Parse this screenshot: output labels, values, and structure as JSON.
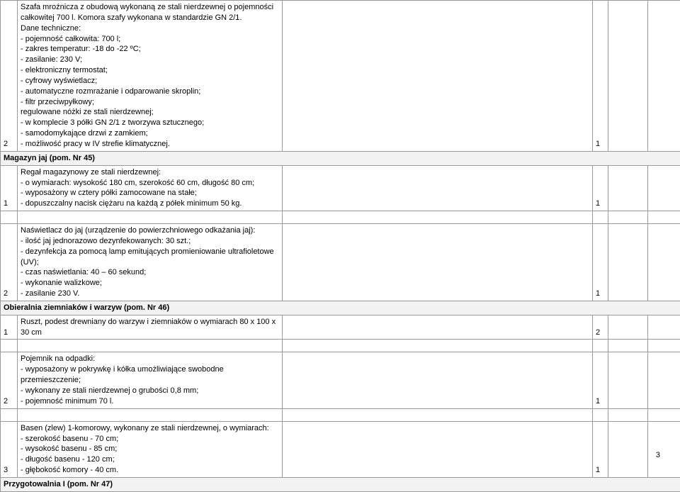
{
  "page_number": "3",
  "rows": [
    {
      "type": "data",
      "num": "2",
      "desc": "Szafa mroźnicza z obudową wykonaną ze stali nierdzewnej o pojemności całkowitej 700 l. Komora szafy wykonana w standardzie GN 2/1.\nDane techniczne:\n- pojemność całkowita: 700 l;\n- zakres temperatur: -18 do -22 ºC;\n- zasilanie: 230 V;\n- elektroniczny termostat;\n- cyfrowy wyświetlacz;\n- automatyczne rozmrażanie i odparowanie skroplin;\n- filtr przeciwpyłkowy;\nregulowane nóżki ze stali nierdzewnej;\n- w komplecie 3 półki GN 2/1 z tworzywa sztucznego;\n- samodomykające drzwi z zamkiem;\n- możliwość pracy w IV strefie klimatycznej.",
      "qty": "1"
    },
    {
      "type": "section",
      "title": "Magazyn jaj (pom. Nr 45)"
    },
    {
      "type": "data",
      "num": "1",
      "desc": "Regał magazynowy ze stali nierdzewnej:\n- o wymiarach: wysokość 180 cm, szerokość 60 cm, długość 80 cm;\n- wyposażony w cztery półki zamocowane na stałe;\n- dopuszczalny nacisk ciężaru na każdą z półek minimum 50 kg.",
      "qty": "1"
    },
    {
      "type": "spacer"
    },
    {
      "type": "data",
      "num": "2",
      "desc": "Naświetlacz do jaj (urządzenie do powierzchniowego odkażania jaj):\n- ilość jaj jednorazowo dezynfekowanych: 30 szt.;\n- dezynfekcja za pomocą lamp emitujących promieniowanie ultrafioletowe (UV);\n- czas naświetlania: 40 – 60 sekund;\n- wykonanie walizkowe;\n- zasilanie 230 V.",
      "qty": "1"
    },
    {
      "type": "section",
      "title": "Obieralnia ziemniaków i warzyw (pom. Nr 46)"
    },
    {
      "type": "data",
      "num": "1",
      "desc": "Ruszt, podest drewniany do warzyw i ziemniaków o wymiarach 80 x 100 x 30 cm",
      "qty": "2"
    },
    {
      "type": "spacer"
    },
    {
      "type": "data",
      "num": "2",
      "desc": "Pojemnik na odpadki:\n- wyposażony w pokrywkę i kółka umożliwiające swobodne przemieszczenie;\n- wykonany ze stali nierdzewnej o grubości 0,8 mm;\n- pojemność minimum 70 l.",
      "qty": "1"
    },
    {
      "type": "spacer"
    },
    {
      "type": "data",
      "num": "3",
      "desc": "Basen (zlew) 1-komorowy, wykonany ze stali nierdzewnej, o wymiarach:\n- szerokość basenu - 70 cm;\n- wysokość basenu - 85 cm;\n- długość basenu - 120 cm;\n- głębokość komory - 40 cm.",
      "qty": "1"
    },
    {
      "type": "section",
      "title": "Przygotowalnia I (pom. Nr 47)"
    }
  ]
}
